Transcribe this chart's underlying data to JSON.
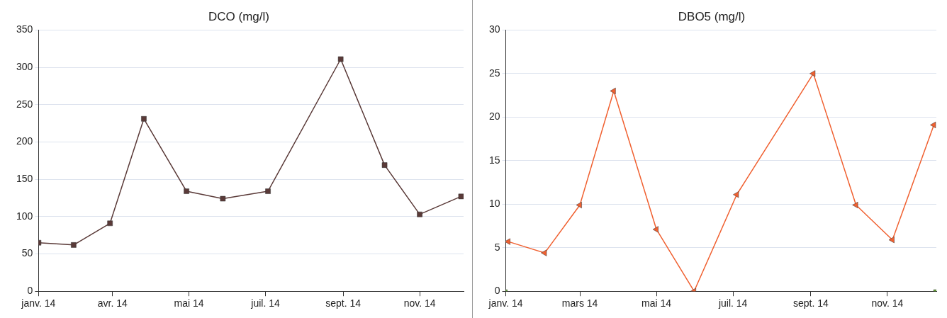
{
  "chart_data": [
    {
      "type": "line",
      "title": "DCO (mg/l)",
      "x": [
        "2014-01-01",
        "2014-01-29",
        "2014-02-27",
        "2014-03-26",
        "2014-04-29",
        "2014-05-28",
        "2014-07-03",
        "2014-08-30",
        "2014-10-04",
        "2014-11-01",
        "2014-12-04"
      ],
      "series": [
        {
          "color": "#5a3a38",
          "values": [
            65,
            62,
            91,
            231,
            134,
            124,
            134,
            311,
            169,
            103,
            127
          ],
          "marker": "square"
        }
      ],
      "xlim": [
        "2014-01-01",
        "2014-12-06"
      ],
      "xticks": [
        {
          "value": "2014-01-01",
          "label": "janv. 14"
        },
        {
          "value": "2014-03-01",
          "label": "avr. 14"
        },
        {
          "value": "2014-05-01",
          "label": "mai 14"
        },
        {
          "value": "2014-07-01",
          "label": "juil. 14"
        },
        {
          "value": "2014-09-01",
          "label": "sept. 14"
        },
        {
          "value": "2014-11-01",
          "label": "nov. 14"
        }
      ],
      "ylim": [
        0,
        350
      ],
      "yticks": [
        0,
        50,
        100,
        150,
        200,
        250,
        300,
        350
      ],
      "grid": "y",
      "legend": false
    },
    {
      "type": "line",
      "title": "DBO5 (mg/l)",
      "x": [
        "2014-01-03",
        "2014-02-01",
        "2014-03-01",
        "2014-03-28",
        "2014-05-01",
        "2014-05-31",
        "2014-07-04",
        "2014-09-03",
        "2014-10-07",
        "2014-11-05",
        "2014-12-08"
      ],
      "series": [
        {
          "color": "#f06030",
          "values": [
            5.7,
            4.4,
            9.9,
            23,
            7.1,
            0,
            11.1,
            25,
            9.9,
            5.9,
            19.1
          ],
          "marker": "triangle"
        },
        {
          "type": "scatter",
          "color": "#66aa33",
          "x": [
            "2014-01-01",
            "2014-12-09"
          ],
          "values": [
            0,
            0
          ],
          "marker": "square"
        }
      ],
      "xlim": [
        "2014-01-01",
        "2014-12-10"
      ],
      "xticks": [
        {
          "value": "2014-01-01",
          "label": "janv. 14"
        },
        {
          "value": "2014-03-01",
          "label": "mars 14"
        },
        {
          "value": "2014-05-01",
          "label": "mai 14"
        },
        {
          "value": "2014-07-01",
          "label": "juil. 14"
        },
        {
          "value": "2014-09-01",
          "label": "sept. 14"
        },
        {
          "value": "2014-11-01",
          "label": "nov. 14"
        }
      ],
      "ylim": [
        0,
        30
      ],
      "yticks": [
        0,
        5,
        10,
        15,
        20,
        25,
        30
      ],
      "grid": "y",
      "legend": false
    }
  ]
}
